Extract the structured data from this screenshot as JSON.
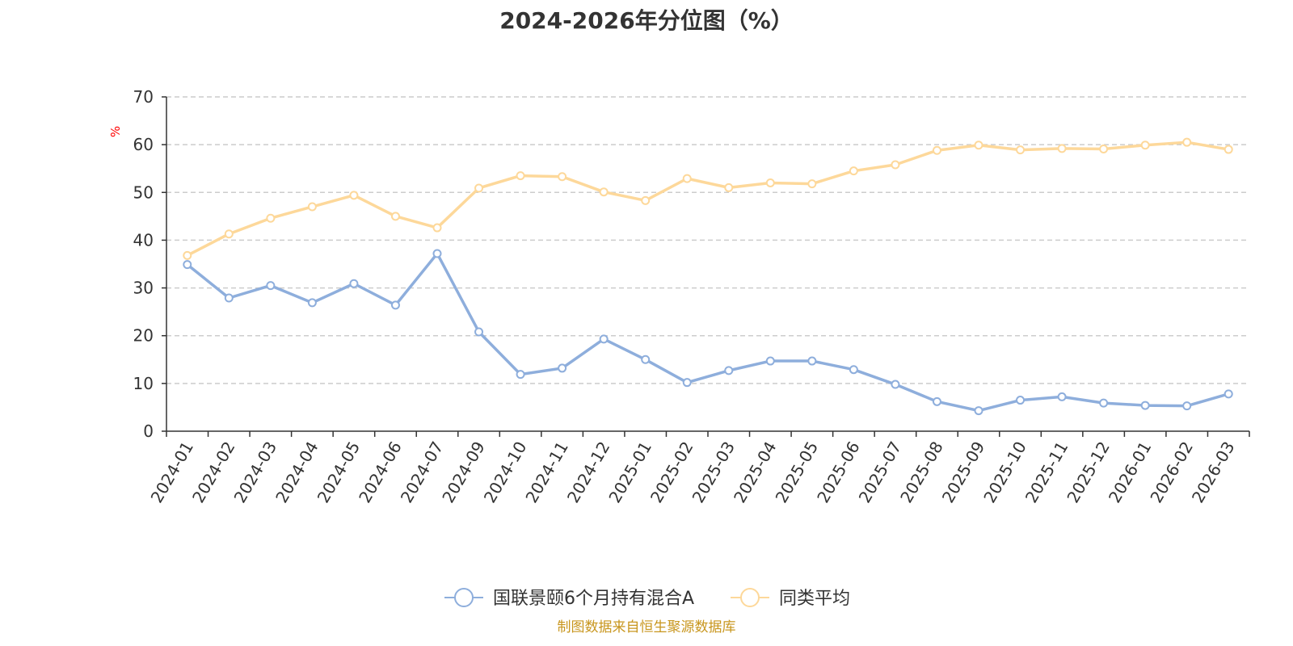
{
  "chart_data": {
    "type": "line",
    "title": "2024-2026年分位图（%）",
    "ylabel": "%",
    "ylim": [
      0,
      70
    ],
    "yticks": [
      0,
      10,
      20,
      30,
      40,
      50,
      60,
      70
    ],
    "grid": true,
    "legend_position": "bottom",
    "categories": [
      "2024-01",
      "2024-02",
      "2024-03",
      "2024-04",
      "2024-05",
      "2024-06",
      "2024-07",
      "2024-09",
      "2024-10",
      "2024-11",
      "2024-12",
      "2025-01",
      "2025-02",
      "2025-03",
      "2025-04",
      "2025-05",
      "2025-06",
      "2025-07",
      "2025-08",
      "2025-09",
      "2025-10",
      "2025-11",
      "2025-12",
      "2026-01",
      "2026-02",
      "2026-03"
    ],
    "series": [
      {
        "name": "国联景颐6个月持有混合A",
        "color": "#8eaedc",
        "values": [
          34.9,
          27.9,
          30.5,
          26.9,
          30.9,
          26.4,
          37.2,
          20.8,
          11.9,
          13.2,
          19.3,
          15.0,
          10.2,
          12.7,
          14.7,
          14.7,
          12.9,
          9.8,
          6.2,
          4.3,
          6.5,
          7.2,
          5.9,
          5.4,
          5.3,
          7.8
        ]
      },
      {
        "name": "同类平均",
        "color": "#fdd89a",
        "values": [
          36.8,
          41.3,
          44.6,
          47.0,
          49.4,
          45.0,
          42.6,
          50.9,
          53.5,
          53.3,
          50.1,
          48.3,
          52.9,
          51.0,
          52.0,
          51.8,
          54.5,
          55.8,
          58.8,
          59.9,
          58.9,
          59.2,
          59.1,
          59.9,
          60.5,
          59.0
        ]
      }
    ]
  },
  "source_text": "制图数据来自恒生聚源数据库"
}
